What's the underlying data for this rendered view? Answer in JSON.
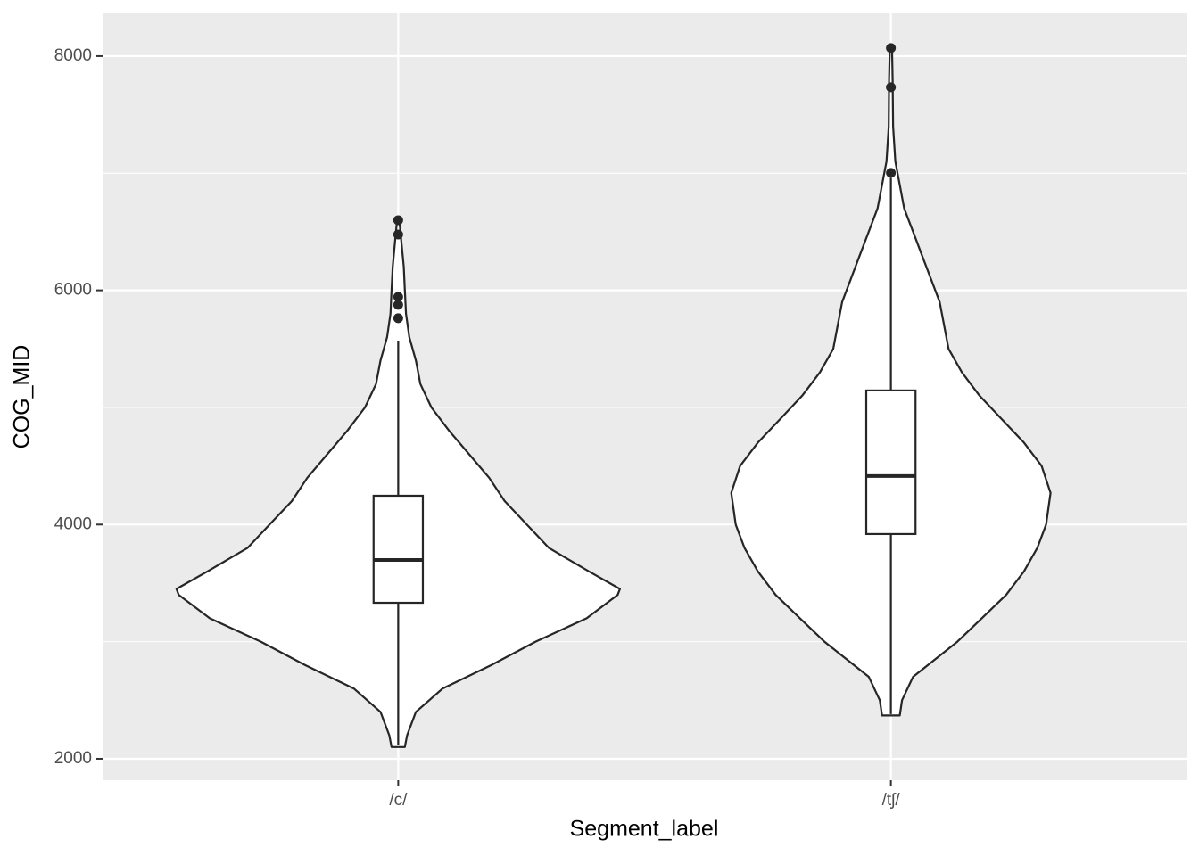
{
  "chart_data": {
    "type": "violin",
    "x_label": "Segment_label",
    "y_label": "COG_MID",
    "categories": [
      "/c/",
      "/tʃ/"
    ],
    "ylim": [
      1817,
      8365
    ],
    "yticks": [
      2000,
      4000,
      6000,
      8000
    ],
    "minor_yticks": [
      3000,
      5000,
      7000
    ],
    "grid": true,
    "panel_color": "#ebebeb",
    "fill_color": "#ffffff",
    "line_color": "#262626",
    "groups": [
      {
        "density_y": [
          2100,
          2200,
          2400,
          2600,
          2800,
          3000,
          3200,
          3400,
          3450,
          3600,
          3800,
          4000,
          4200,
          4400,
          4600,
          4800,
          5000,
          5200,
          5400,
          5600,
          5800,
          6000,
          6200,
          6400,
          6600
        ],
        "density_width": [
          0.03,
          0.04,
          0.08,
          0.2,
          0.42,
          0.62,
          0.85,
          0.99,
          1.0,
          0.86,
          0.68,
          0.58,
          0.48,
          0.41,
          0.32,
          0.23,
          0.15,
          0.1,
          0.08,
          0.05,
          0.035,
          0.03,
          0.025,
          0.015,
          0.005
        ],
        "box": {
          "whisker_low": 2114,
          "q1": 3332,
          "median": 3698,
          "q3": 4246,
          "whisker_high": 5571
        },
        "outliers": [
          5762,
          5876,
          5944,
          6477,
          6599
        ]
      },
      {
        "density_y": [
          2370,
          2500,
          2700,
          3000,
          3200,
          3400,
          3600,
          3800,
          4000,
          4270,
          4500,
          4700,
          4900,
          5100,
          5300,
          5500,
          5700,
          5900,
          6100,
          6300,
          6500,
          6700,
          6900,
          7100,
          7400,
          7800,
          8070
        ],
        "density_width": [
          0.04,
          0.05,
          0.1,
          0.3,
          0.41,
          0.52,
          0.6,
          0.66,
          0.7,
          0.72,
          0.68,
          0.6,
          0.5,
          0.4,
          0.32,
          0.26,
          0.24,
          0.22,
          0.18,
          0.14,
          0.1,
          0.06,
          0.04,
          0.02,
          0.01,
          0.008,
          0.005
        ],
        "box": {
          "whisker_low": 2381,
          "q1": 3919,
          "median": 4414,
          "q3": 5145,
          "whisker_high": 6960
        },
        "outliers": [
          7003,
          7734,
          8069
        ]
      }
    ]
  }
}
